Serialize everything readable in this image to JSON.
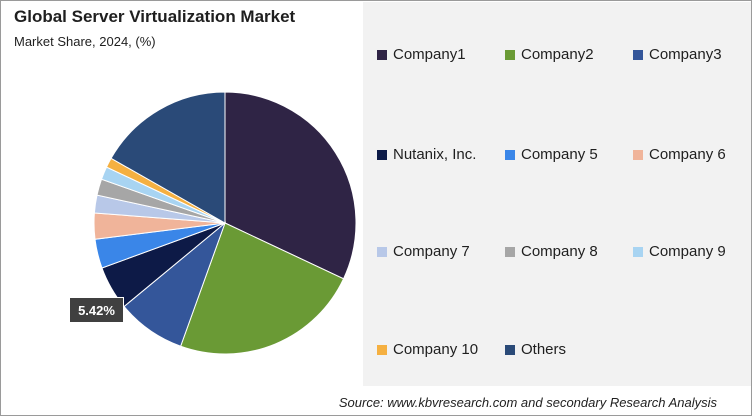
{
  "chart_data": {
    "type": "pie",
    "title": "Global Server Virtualization Market",
    "subtitle": "Market Share, 2024, (%)",
    "slices": [
      {
        "label": "Company1",
        "value": 32.0,
        "color": "#2f2445"
      },
      {
        "label": "Company2",
        "value": 23.5,
        "color": "#6a9a35"
      },
      {
        "label": "Company3",
        "value": 8.5,
        "color": "#34569a"
      },
      {
        "label": "Nutanix, Inc.",
        "value": 5.42,
        "color": "#0d1a47"
      },
      {
        "label": "Company 5",
        "value": 3.6,
        "color": "#3a86e8"
      },
      {
        "label": "Company 6",
        "value": 3.2,
        "color": "#f0b49a"
      },
      {
        "label": "Company 7",
        "value": 2.2,
        "color": "#b8c8e8"
      },
      {
        "label": "Company 8",
        "value": 2.0,
        "color": "#a6a6a6"
      },
      {
        "label": "Company 9",
        "value": 1.6,
        "color": "#a8d4f2"
      },
      {
        "label": "Company 10",
        "value": 1.2,
        "color": "#f5b041"
      },
      {
        "label": "Others",
        "value": 16.78,
        "color": "#2a4a78"
      }
    ],
    "data_labels": [
      {
        "label": "Nutanix, Inc.",
        "text": "5.42%"
      }
    ],
    "legend_position": "right"
  },
  "source": "Source: www.kbvresearch.com and secondary Research Analysis"
}
